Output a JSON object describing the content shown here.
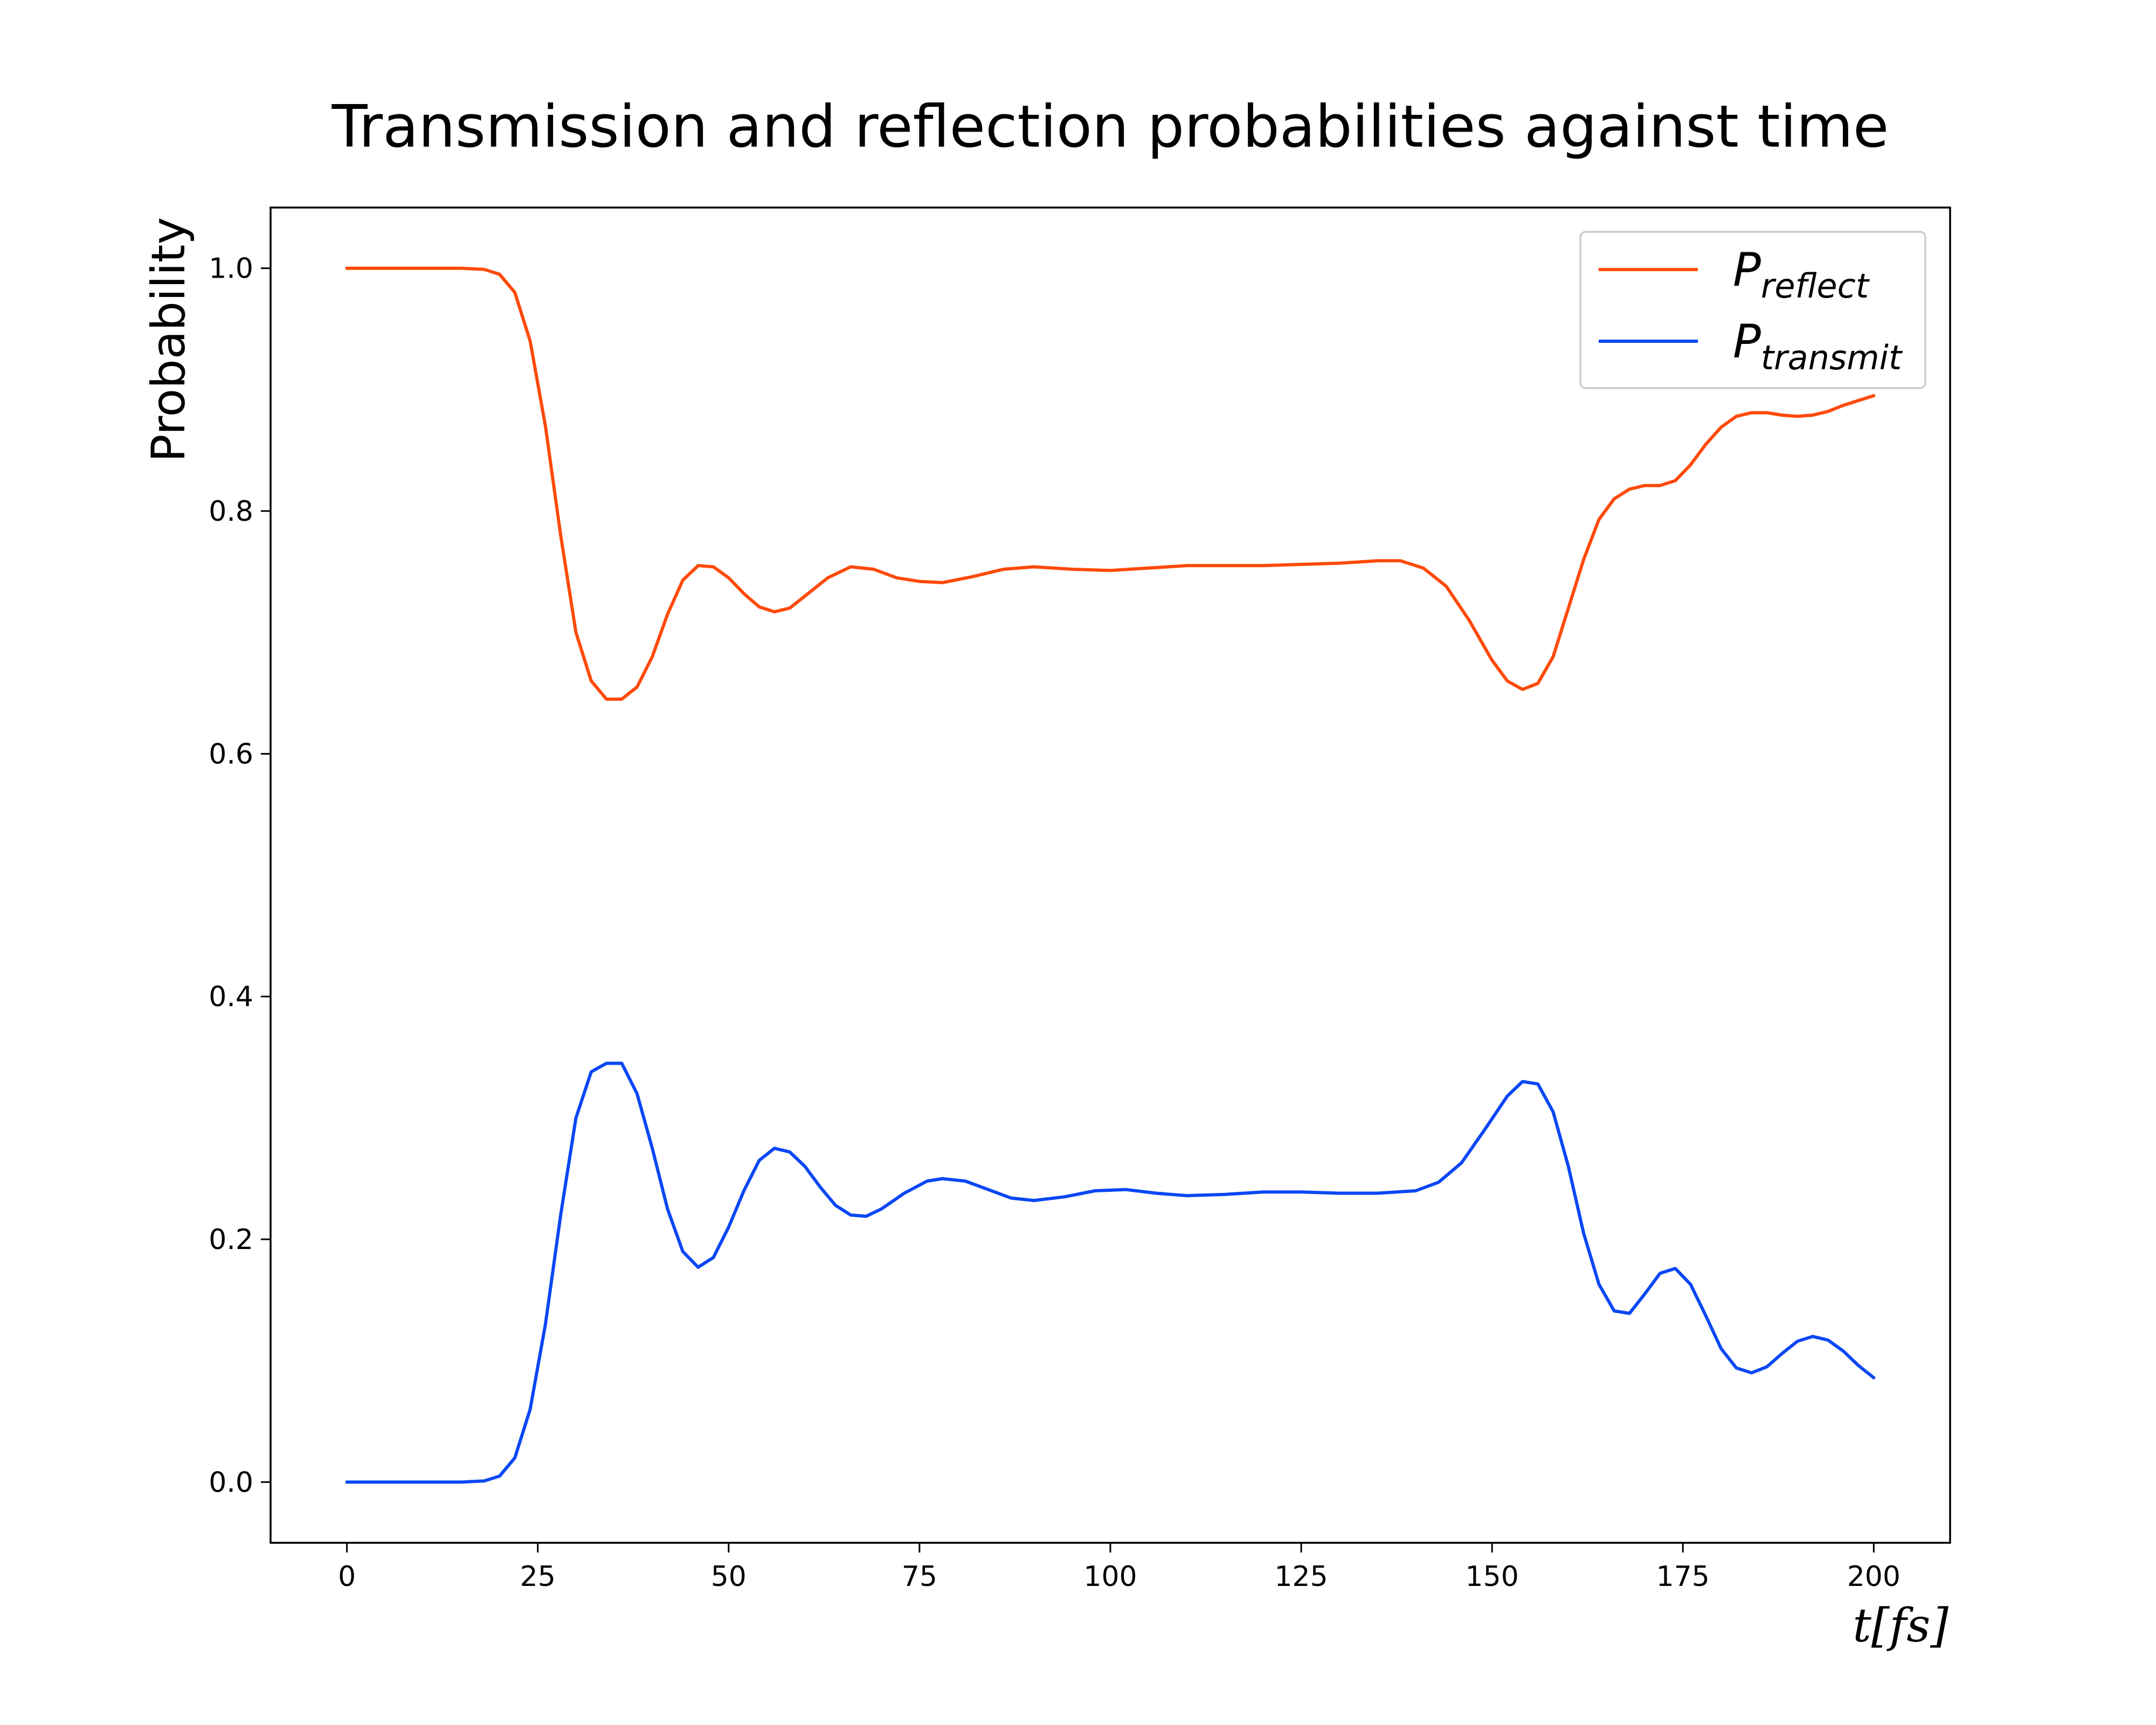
{
  "chart_data": {
    "type": "line",
    "title": "Transmission and reflection probabilities against time",
    "xlabel": "t[fs]",
    "ylabel": "Probability",
    "xlim": [
      -10,
      210
    ],
    "ylim": [
      -0.05,
      1.05
    ],
    "xticks": [
      0,
      25,
      50,
      75,
      100,
      125,
      150,
      175,
      200
    ],
    "yticks": [
      0.0,
      0.2,
      0.4,
      0.6,
      0.8,
      1.0
    ],
    "xtick_labels": [
      "0",
      "25",
      "50",
      "75",
      "100",
      "125",
      "150",
      "175",
      "200"
    ],
    "ytick_labels": [
      "0.0",
      "0.2",
      "0.4",
      "0.6",
      "0.8",
      "1.0"
    ],
    "grid": false,
    "legend_position": "top-right",
    "series": [
      {
        "name": "P_reflect",
        "label_main": "P",
        "label_sub": "reflect",
        "color": "#ff4a0a",
        "points": [
          [
            0,
            1.0
          ],
          [
            5,
            1.0
          ],
          [
            10,
            1.0
          ],
          [
            15,
            1.0
          ],
          [
            18,
            0.999
          ],
          [
            20,
            0.995
          ],
          [
            22,
            0.98
          ],
          [
            24,
            0.94
          ],
          [
            26,
            0.87
          ],
          [
            28,
            0.78
          ],
          [
            30,
            0.7
          ],
          [
            32,
            0.66
          ],
          [
            34,
            0.645
          ],
          [
            36,
            0.645
          ],
          [
            38,
            0.655
          ],
          [
            40,
            0.68
          ],
          [
            42,
            0.715
          ],
          [
            44,
            0.743
          ],
          [
            46,
            0.755
          ],
          [
            48,
            0.754
          ],
          [
            50,
            0.745
          ],
          [
            52,
            0.732
          ],
          [
            54,
            0.721
          ],
          [
            56,
            0.717
          ],
          [
            58,
            0.72
          ],
          [
            60,
            0.73
          ],
          [
            63,
            0.745
          ],
          [
            66,
            0.754
          ],
          [
            69,
            0.752
          ],
          [
            72,
            0.745
          ],
          [
            75,
            0.742
          ],
          [
            78,
            0.741
          ],
          [
            82,
            0.746
          ],
          [
            86,
            0.752
          ],
          [
            90,
            0.754
          ],
          [
            95,
            0.752
          ],
          [
            100,
            0.751
          ],
          [
            105,
            0.753
          ],
          [
            110,
            0.755
          ],
          [
            115,
            0.755
          ],
          [
            120,
            0.755
          ],
          [
            125,
            0.756
          ],
          [
            130,
            0.757
          ],
          [
            135,
            0.759
          ],
          [
            138,
            0.759
          ],
          [
            141,
            0.753
          ],
          [
            144,
            0.738
          ],
          [
            147,
            0.71
          ],
          [
            150,
            0.677
          ],
          [
            152,
            0.66
          ],
          [
            154,
            0.653
          ],
          [
            156,
            0.658
          ],
          [
            158,
            0.68
          ],
          [
            160,
            0.72
          ],
          [
            162,
            0.76
          ],
          [
            164,
            0.793
          ],
          [
            166,
            0.81
          ],
          [
            168,
            0.818
          ],
          [
            170,
            0.821
          ],
          [
            172,
            0.821
          ],
          [
            174,
            0.825
          ],
          [
            176,
            0.838
          ],
          [
            178,
            0.855
          ],
          [
            180,
            0.869
          ],
          [
            182,
            0.878
          ],
          [
            184,
            0.881
          ],
          [
            186,
            0.881
          ],
          [
            188,
            0.879
          ],
          [
            190,
            0.878
          ],
          [
            192,
            0.879
          ],
          [
            194,
            0.882
          ],
          [
            196,
            0.887
          ],
          [
            198,
            0.891
          ],
          [
            200,
            0.895
          ]
        ]
      },
      {
        "name": "P_transmit",
        "label_main": "P",
        "label_sub": "transmit",
        "color": "#0a47f5",
        "points": [
          [
            0,
            0.0
          ],
          [
            5,
            0.0
          ],
          [
            10,
            0.0
          ],
          [
            15,
            0.0
          ],
          [
            18,
            0.001
          ],
          [
            20,
            0.005
          ],
          [
            22,
            0.02
          ],
          [
            24,
            0.06
          ],
          [
            26,
            0.13
          ],
          [
            28,
            0.22
          ],
          [
            30,
            0.3
          ],
          [
            32,
            0.338
          ],
          [
            34,
            0.345
          ],
          [
            36,
            0.345
          ],
          [
            38,
            0.32
          ],
          [
            40,
            0.275
          ],
          [
            42,
            0.225
          ],
          [
            44,
            0.19
          ],
          [
            46,
            0.177
          ],
          [
            48,
            0.185
          ],
          [
            50,
            0.21
          ],
          [
            52,
            0.24
          ],
          [
            54,
            0.265
          ],
          [
            56,
            0.275
          ],
          [
            58,
            0.272
          ],
          [
            60,
            0.26
          ],
          [
            62,
            0.243
          ],
          [
            64,
            0.228
          ],
          [
            66,
            0.22
          ],
          [
            68,
            0.219
          ],
          [
            70,
            0.225
          ],
          [
            73,
            0.238
          ],
          [
            76,
            0.248
          ],
          [
            78,
            0.25
          ],
          [
            81,
            0.248
          ],
          [
            84,
            0.241
          ],
          [
            87,
            0.234
          ],
          [
            90,
            0.232
          ],
          [
            94,
            0.235
          ],
          [
            98,
            0.24
          ],
          [
            102,
            0.241
          ],
          [
            106,
            0.238
          ],
          [
            110,
            0.236
          ],
          [
            115,
            0.237
          ],
          [
            120,
            0.239
          ],
          [
            125,
            0.239
          ],
          [
            130,
            0.238
          ],
          [
            135,
            0.238
          ],
          [
            140,
            0.24
          ],
          [
            143,
            0.247
          ],
          [
            146,
            0.263
          ],
          [
            149,
            0.29
          ],
          [
            152,
            0.318
          ],
          [
            154,
            0.33
          ],
          [
            156,
            0.328
          ],
          [
            158,
            0.305
          ],
          [
            160,
            0.26
          ],
          [
            162,
            0.205
          ],
          [
            164,
            0.163
          ],
          [
            166,
            0.141
          ],
          [
            168,
            0.139
          ],
          [
            170,
            0.155
          ],
          [
            172,
            0.172
          ],
          [
            174,
            0.176
          ],
          [
            176,
            0.163
          ],
          [
            178,
            0.137
          ],
          [
            180,
            0.11
          ],
          [
            182,
            0.094
          ],
          [
            184,
            0.09
          ],
          [
            186,
            0.095
          ],
          [
            188,
            0.106
          ],
          [
            190,
            0.116
          ],
          [
            192,
            0.12
          ],
          [
            194,
            0.117
          ],
          [
            196,
            0.108
          ],
          [
            198,
            0.096
          ],
          [
            200,
            0.086
          ]
        ]
      }
    ]
  }
}
